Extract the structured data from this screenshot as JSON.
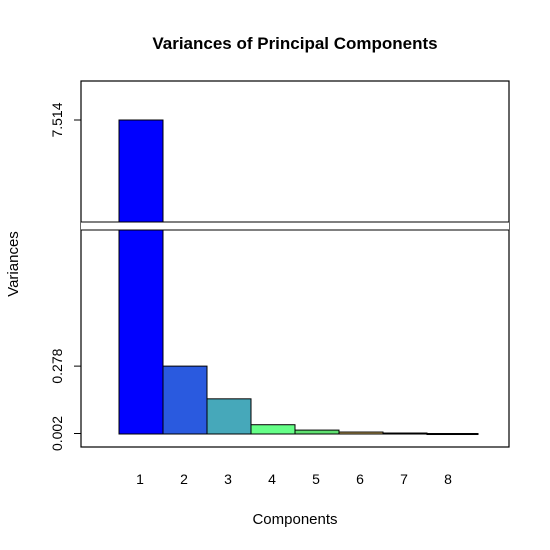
{
  "chart_data": {
    "type": "bar",
    "title": "Variances of Principal Components",
    "xlabel": "Components",
    "ylabel": "Variances",
    "categories": [
      "1",
      "2",
      "3",
      "4",
      "5",
      "6",
      "7",
      "8"
    ],
    "values": [
      7.514,
      0.278,
      0.144,
      0.038,
      0.016,
      0.008,
      0.004,
      0.002
    ],
    "y_tick_labels": [
      "0.002",
      "0.278",
      "7.514"
    ],
    "y_axis_break": true,
    "bar_colors": [
      "#0000FF",
      "#2A5ADF",
      "#46A8BA",
      "#66FF88",
      "#5FE070",
      "#D2B060",
      "#C86C2A",
      "#A04010"
    ],
    "grid": false,
    "legend": "none"
  }
}
